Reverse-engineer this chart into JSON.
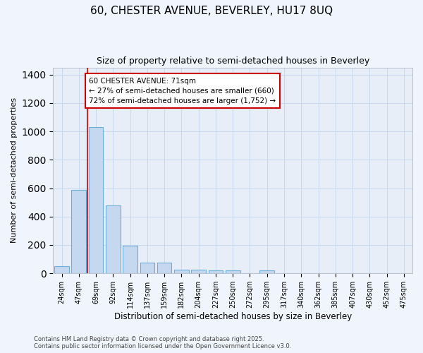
{
  "title_line1": "60, CHESTER AVENUE, BEVERLEY, HU17 8UQ",
  "title_line2": "Size of property relative to semi-detached houses in Beverley",
  "xlabel": "Distribution of semi-detached houses by size in Beverley",
  "ylabel": "Number of semi-detached properties",
  "bins": [
    "24sqm",
    "47sqm",
    "69sqm",
    "92sqm",
    "114sqm",
    "137sqm",
    "159sqm",
    "182sqm",
    "204sqm",
    "227sqm",
    "250sqm",
    "272sqm",
    "295sqm",
    "317sqm",
    "340sqm",
    "362sqm",
    "385sqm",
    "407sqm",
    "430sqm",
    "452sqm",
    "475sqm"
  ],
  "values": [
    50,
    590,
    1030,
    480,
    195,
    75,
    75,
    25,
    25,
    20,
    20,
    0,
    20,
    0,
    0,
    0,
    0,
    0,
    0,
    0,
    0
  ],
  "bar_color": "#c5d8f0",
  "bar_edge_color": "#6baed6",
  "grid_color": "#c8d8ee",
  "red_line_color": "#cc0000",
  "red_line_x": 1.5,
  "annotation_title": "60 CHESTER AVENUE: 71sqm",
  "annotation_line1": "← 27% of semi-detached houses are smaller (660)",
  "annotation_line2": "72% of semi-detached houses are larger (1,752) →",
  "footnote1": "Contains HM Land Registry data © Crown copyright and database right 2025.",
  "footnote2": "Contains public sector information licensed under the Open Government Licence v3.0.",
  "ylim": [
    0,
    1450
  ],
  "yticks": [
    0,
    200,
    400,
    600,
    800,
    1000,
    1200,
    1400
  ],
  "background_color": "#f0f4fc",
  "plot_bg_color": "#e8eef8",
  "figsize": [
    6.0,
    5.0
  ],
  "dpi": 100
}
